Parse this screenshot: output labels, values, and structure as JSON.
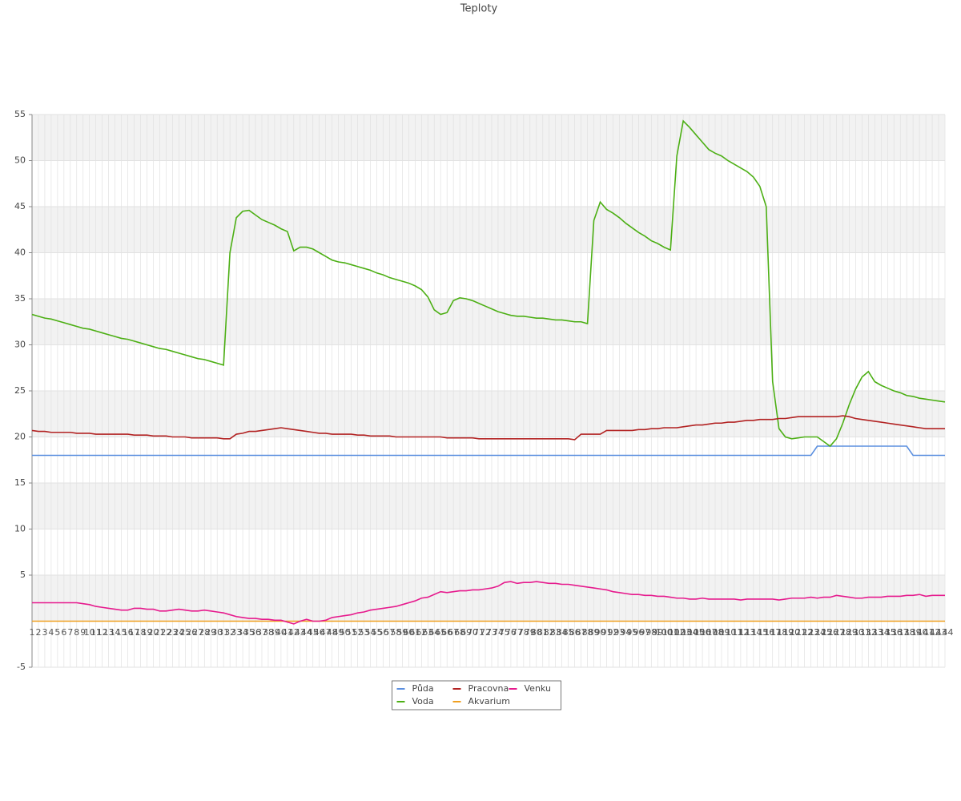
{
  "chart_data": {
    "type": "line",
    "title": "Teploty",
    "x": [
      1,
      2,
      3,
      4,
      5,
      6,
      7,
      8,
      9,
      10,
      11,
      12,
      13,
      14,
      15,
      16,
      17,
      18,
      19,
      20,
      21,
      22,
      23,
      24,
      25,
      26,
      27,
      28,
      29,
      30,
      31,
      32,
      33,
      34,
      35,
      36,
      37,
      38,
      39,
      40,
      41,
      42,
      43,
      44,
      45,
      46,
      47,
      48,
      49,
      50,
      51,
      52,
      53,
      54,
      55,
      56,
      57,
      58,
      59,
      60,
      61,
      62,
      63,
      64,
      65,
      66,
      67,
      68,
      69,
      70,
      71,
      72,
      73,
      74,
      75,
      76,
      77,
      78,
      79,
      80,
      81,
      82,
      83,
      84,
      85,
      86,
      87,
      88,
      89,
      90,
      91,
      92,
      93,
      94,
      95,
      96,
      97,
      98,
      99,
      100,
      101,
      102,
      103,
      104,
      105,
      106,
      107,
      108,
      109,
      110,
      111,
      112,
      113,
      114,
      115,
      116,
      117,
      118,
      119,
      120,
      121,
      122,
      123,
      124,
      125,
      126,
      127,
      128,
      129,
      130,
      131,
      132,
      133,
      134,
      135,
      136,
      137,
      138,
      139,
      140,
      141,
      142,
      143,
      144
    ],
    "xlim": [
      1,
      144
    ],
    "ylim": [
      -5,
      55
    ],
    "yticks": [
      -5,
      5,
      10,
      15,
      20,
      25,
      30,
      35,
      40,
      45,
      50,
      55
    ],
    "grid": true,
    "legend": "bottom",
    "series": [
      {
        "name": "Půda",
        "color": "#5b8fdf",
        "values": [
          18,
          18,
          18,
          18,
          18,
          18,
          18,
          18,
          18,
          18,
          18,
          18,
          18,
          18,
          18,
          18,
          18,
          18,
          18,
          18,
          18,
          18,
          18,
          18,
          18,
          18,
          18,
          18,
          18,
          18,
          18,
          18,
          18,
          18,
          18,
          18,
          18,
          18,
          18,
          18,
          18,
          18,
          18,
          18,
          18,
          18,
          18,
          18,
          18,
          18,
          18,
          18,
          18,
          18,
          18,
          18,
          18,
          18,
          18,
          18,
          18,
          18,
          18,
          18,
          18,
          18,
          18,
          18,
          18,
          18,
          18,
          18,
          18,
          18,
          18,
          18,
          18,
          18,
          18,
          18,
          18,
          18,
          18,
          18,
          18,
          18,
          18,
          18,
          18,
          18,
          18,
          18,
          18,
          18,
          18,
          18,
          18,
          18,
          18,
          18,
          18,
          18,
          18,
          18,
          18,
          18,
          18,
          18,
          18,
          18,
          18,
          18,
          18,
          18,
          18,
          18,
          18,
          18,
          18,
          18,
          18,
          18,
          18,
          19,
          19,
          19,
          19,
          19,
          19,
          19,
          19,
          19,
          19,
          19,
          19,
          19,
          19,
          19,
          18,
          18,
          18,
          18,
          18,
          18
        ]
      },
      {
        "name": "Voda",
        "color": "#4caf14",
        "values": [
          33.3,
          33.1,
          32.9,
          32.8,
          32.6,
          32.4,
          32.2,
          32.0,
          31.8,
          31.7,
          31.5,
          31.3,
          31.1,
          30.9,
          30.7,
          30.6,
          30.4,
          30.2,
          30.0,
          29.8,
          29.6,
          29.5,
          29.3,
          29.1,
          28.9,
          28.7,
          28.5,
          28.4,
          28.2,
          28.0,
          27.8,
          40.0,
          43.8,
          44.5,
          44.6,
          44.1,
          43.6,
          43.3,
          43.0,
          42.6,
          42.3,
          40.2,
          40.6,
          40.6,
          40.4,
          40.0,
          39.6,
          39.2,
          39.0,
          38.9,
          38.7,
          38.5,
          38.3,
          38.1,
          37.8,
          37.6,
          37.3,
          37.1,
          36.9,
          36.7,
          36.4,
          36.0,
          35.2,
          33.8,
          33.3,
          33.5,
          34.8,
          35.1,
          35.0,
          34.8,
          34.5,
          34.2,
          33.9,
          33.6,
          33.4,
          33.2,
          33.1,
          33.1,
          33.0,
          32.9,
          32.9,
          32.8,
          32.7,
          32.7,
          32.6,
          32.5,
          32.5,
          32.3,
          43.5,
          45.5,
          44.7,
          44.3,
          43.8,
          43.2,
          42.7,
          42.2,
          41.8,
          41.3,
          41.0,
          40.6,
          40.3,
          50.5,
          54.3,
          53.6,
          52.8,
          52.0,
          51.2,
          50.8,
          50.5,
          50.0,
          49.6,
          49.2,
          48.8,
          48.2,
          47.2,
          45.0,
          26.0,
          20.9,
          20.0,
          19.8,
          19.9,
          20.0,
          20.0,
          20.0,
          19.5,
          19.0,
          19.8,
          21.5,
          23.5,
          25.2,
          26.5,
          27.1,
          26.0,
          25.6,
          25.3,
          25.0,
          24.8,
          24.5,
          24.4,
          24.2,
          24.1,
          24.0,
          23.9,
          23.8
        ]
      },
      {
        "name": "Pracovna",
        "color": "#b22222",
        "values": [
          20.7,
          20.6,
          20.6,
          20.5,
          20.5,
          20.5,
          20.5,
          20.4,
          20.4,
          20.4,
          20.3,
          20.3,
          20.3,
          20.3,
          20.3,
          20.3,
          20.2,
          20.2,
          20.2,
          20.1,
          20.1,
          20.1,
          20.0,
          20.0,
          20.0,
          19.9,
          19.9,
          19.9,
          19.9,
          19.9,
          19.8,
          19.8,
          20.3,
          20.4,
          20.6,
          20.6,
          20.7,
          20.8,
          20.9,
          21.0,
          20.9,
          20.8,
          20.7,
          20.6,
          20.5,
          20.4,
          20.4,
          20.3,
          20.3,
          20.3,
          20.3,
          20.2,
          20.2,
          20.1,
          20.1,
          20.1,
          20.1,
          20.0,
          20.0,
          20.0,
          20.0,
          20.0,
          20.0,
          20.0,
          20.0,
          19.9,
          19.9,
          19.9,
          19.9,
          19.9,
          19.8,
          19.8,
          19.8,
          19.8,
          19.8,
          19.8,
          19.8,
          19.8,
          19.8,
          19.8,
          19.8,
          19.8,
          19.8,
          19.8,
          19.8,
          19.7,
          20.3,
          20.3,
          20.3,
          20.3,
          20.7,
          20.7,
          20.7,
          20.7,
          20.7,
          20.8,
          20.8,
          20.9,
          20.9,
          21.0,
          21.0,
          21.0,
          21.1,
          21.2,
          21.3,
          21.3,
          21.4,
          21.5,
          21.5,
          21.6,
          21.6,
          21.7,
          21.8,
          21.8,
          21.9,
          21.9,
          21.9,
          22.0,
          22.0,
          22.1,
          22.2,
          22.2,
          22.2,
          22.2,
          22.2,
          22.2,
          22.2,
          22.3,
          22.2,
          22.0,
          21.9,
          21.8,
          21.7,
          21.6,
          21.5,
          21.4,
          21.3,
          21.2,
          21.1,
          21.0,
          20.9,
          20.9,
          20.9,
          20.9
        ]
      },
      {
        "name": "Akvarium",
        "color": "#f0a020",
        "values": [
          0,
          0,
          0,
          0,
          0,
          0,
          0,
          0,
          0,
          0,
          0,
          0,
          0,
          0,
          0,
          0,
          0,
          0,
          0,
          0,
          0,
          0,
          0,
          0,
          0,
          0,
          0,
          0,
          0,
          0,
          0,
          0,
          0,
          0,
          0,
          0,
          0,
          0,
          0,
          0,
          0,
          0,
          0,
          0,
          0,
          0,
          0,
          0,
          0,
          0,
          0,
          0,
          0,
          0,
          0,
          0,
          0,
          0,
          0,
          0,
          0,
          0,
          0,
          0,
          0,
          0,
          0,
          0,
          0,
          0,
          0,
          0,
          0,
          0,
          0,
          0,
          0,
          0,
          0,
          0,
          0,
          0,
          0,
          0,
          0,
          0,
          0,
          0,
          0,
          0,
          0,
          0,
          0,
          0,
          0,
          0,
          0,
          0,
          0,
          0,
          0,
          0,
          0,
          0,
          0,
          0,
          0,
          0,
          0,
          0,
          0,
          0,
          0,
          0,
          0,
          0,
          0,
          0,
          0,
          0,
          0,
          0,
          0,
          0,
          0,
          0,
          0,
          0,
          0,
          0,
          0,
          0,
          0,
          0,
          0,
          0,
          0,
          0,
          0,
          0,
          0,
          0,
          0,
          0
        ]
      },
      {
        "name": "Venku",
        "color": "#e61a8d",
        "values": [
          2.0,
          2.0,
          2.0,
          2.0,
          2.0,
          2.0,
          2.0,
          2.0,
          1.9,
          1.8,
          1.6,
          1.5,
          1.4,
          1.3,
          1.2,
          1.2,
          1.4,
          1.4,
          1.3,
          1.3,
          1.1,
          1.1,
          1.2,
          1.3,
          1.2,
          1.1,
          1.1,
          1.2,
          1.1,
          1.0,
          0.9,
          0.7,
          0.5,
          0.4,
          0.3,
          0.3,
          0.2,
          0.2,
          0.1,
          0.1,
          -0.1,
          -0.3,
          0.0,
          0.2,
          0.0,
          0.0,
          0.1,
          0.4,
          0.5,
          0.6,
          0.7,
          0.9,
          1.0,
          1.2,
          1.3,
          1.4,
          1.5,
          1.6,
          1.8,
          2.0,
          2.2,
          2.5,
          2.6,
          2.9,
          3.2,
          3.1,
          3.2,
          3.3,
          3.3,
          3.4,
          3.4,
          3.5,
          3.6,
          3.8,
          4.2,
          4.3,
          4.1,
          4.2,
          4.2,
          4.3,
          4.2,
          4.1,
          4.1,
          4.0,
          4.0,
          3.9,
          3.8,
          3.7,
          3.6,
          3.5,
          3.4,
          3.2,
          3.1,
          3.0,
          2.9,
          2.9,
          2.8,
          2.8,
          2.7,
          2.7,
          2.6,
          2.5,
          2.5,
          2.4,
          2.4,
          2.5,
          2.4,
          2.4,
          2.4,
          2.4,
          2.4,
          2.3,
          2.4,
          2.4,
          2.4,
          2.4,
          2.4,
          2.3,
          2.4,
          2.5,
          2.5,
          2.5,
          2.6,
          2.5,
          2.6,
          2.6,
          2.8,
          2.7,
          2.6,
          2.5,
          2.5,
          2.6,
          2.6,
          2.6,
          2.7,
          2.7,
          2.7,
          2.8,
          2.8,
          2.9,
          2.7,
          2.8,
          2.8,
          2.8
        ]
      }
    ]
  }
}
